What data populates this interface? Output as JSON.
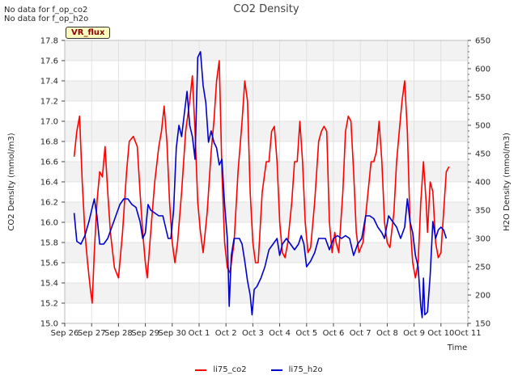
{
  "notes": [
    "No data for f_op_co2",
    "No data for f_op_h2o"
  ],
  "badge": "VR_flux",
  "colors": {
    "co2": "#ff0000",
    "h2o": "#0000cc",
    "band": "#f2f2f2",
    "grid": "#dcdcdc"
  },
  "chart_data": {
    "type": "line",
    "title": "CO2 Density",
    "xlabel": "Time",
    "ylabel": "CO2 Density (mmol/m3)",
    "y2label": "H2O Density (mmol/m3)",
    "xlim": [
      0,
      15
    ],
    "ylim": [
      15.0,
      17.8
    ],
    "y2lim": [
      150,
      650
    ],
    "x_ticks": [
      "Sep 26",
      "Sep 27",
      "Sep 28",
      "Sep 29",
      "Sep 30",
      "Oct 1",
      "Oct 2",
      "Oct 3",
      "Oct 4",
      "Oct 5",
      "Oct 6",
      "Oct 7",
      "Oct 8",
      "Oct 9",
      "Oct 10",
      "Oct 11"
    ],
    "y_ticks": [
      "15.0",
      "15.2",
      "15.4",
      "15.6",
      "15.8",
      "16.0",
      "16.2",
      "16.4",
      "16.6",
      "16.8",
      "17.0",
      "17.2",
      "17.4",
      "17.6",
      "17.8"
    ],
    "y2_ticks": [
      "150",
      "200",
      "250",
      "300",
      "350",
      "400",
      "450",
      "500",
      "550",
      "600",
      "650"
    ],
    "legend_position": "bottom-center",
    "series": [
      {
        "name": "li75_co2",
        "axis": "left",
        "points": [
          [
            0.35,
            16.65
          ],
          [
            0.45,
            16.9
          ],
          [
            0.55,
            17.05
          ],
          [
            0.65,
            16.4
          ],
          [
            0.75,
            15.9
          ],
          [
            0.85,
            15.6
          ],
          [
            0.95,
            15.35
          ],
          [
            1.02,
            15.2
          ],
          [
            1.1,
            15.7
          ],
          [
            1.2,
            16.2
          ],
          [
            1.3,
            16.5
          ],
          [
            1.4,
            16.45
          ],
          [
            1.5,
            16.75
          ],
          [
            1.6,
            16.3
          ],
          [
            1.7,
            15.9
          ],
          [
            1.85,
            15.55
          ],
          [
            2.0,
            15.45
          ],
          [
            2.15,
            15.9
          ],
          [
            2.3,
            16.5
          ],
          [
            2.4,
            16.8
          ],
          [
            2.55,
            16.85
          ],
          [
            2.7,
            16.75
          ],
          [
            2.8,
            16.3
          ],
          [
            2.9,
            15.9
          ],
          [
            3.0,
            15.6
          ],
          [
            3.07,
            15.45
          ],
          [
            3.2,
            15.9
          ],
          [
            3.35,
            16.4
          ],
          [
            3.5,
            16.75
          ],
          [
            3.6,
            16.9
          ],
          [
            3.7,
            17.15
          ],
          [
            3.8,
            16.8
          ],
          [
            3.9,
            16.2
          ],
          [
            4.0,
            15.8
          ],
          [
            4.1,
            15.6
          ],
          [
            4.2,
            15.8
          ],
          [
            4.35,
            16.3
          ],
          [
            4.5,
            16.9
          ],
          [
            4.65,
            17.2
          ],
          [
            4.75,
            17.45
          ],
          [
            4.85,
            16.9
          ],
          [
            4.95,
            16.2
          ],
          [
            5.05,
            15.9
          ],
          [
            5.15,
            15.7
          ],
          [
            5.3,
            16.1
          ],
          [
            5.45,
            16.7
          ],
          [
            5.55,
            17.0
          ],
          [
            5.65,
            17.4
          ],
          [
            5.75,
            17.6
          ],
          [
            5.85,
            16.5
          ],
          [
            5.95,
            15.8
          ],
          [
            6.05,
            15.55
          ],
          [
            6.15,
            15.5
          ],
          [
            6.3,
            15.8
          ],
          [
            6.45,
            16.5
          ],
          [
            6.6,
            17.0
          ],
          [
            6.7,
            17.4
          ],
          [
            6.8,
            17.2
          ],
          [
            6.9,
            16.3
          ],
          [
            7.0,
            15.8
          ],
          [
            7.1,
            15.6
          ],
          [
            7.2,
            15.6
          ],
          [
            7.35,
            16.3
          ],
          [
            7.5,
            16.6
          ],
          [
            7.6,
            16.6
          ],
          [
            7.7,
            16.9
          ],
          [
            7.8,
            16.95
          ],
          [
            7.9,
            16.6
          ],
          [
            8.0,
            16.0
          ],
          [
            8.1,
            15.7
          ],
          [
            8.2,
            15.65
          ],
          [
            8.3,
            15.8
          ],
          [
            8.45,
            16.2
          ],
          [
            8.55,
            16.6
          ],
          [
            8.65,
            16.6
          ],
          [
            8.75,
            17.0
          ],
          [
            8.85,
            16.6
          ],
          [
            8.95,
            16.0
          ],
          [
            9.05,
            15.7
          ],
          [
            9.15,
            15.75
          ],
          [
            9.3,
            16.2
          ],
          [
            9.45,
            16.8
          ],
          [
            9.55,
            16.9
          ],
          [
            9.65,
            16.95
          ],
          [
            9.75,
            16.9
          ],
          [
            9.85,
            16.0
          ],
          [
            9.95,
            15.7
          ],
          [
            10.05,
            15.9
          ],
          [
            10.1,
            15.8
          ],
          [
            10.2,
            15.7
          ],
          [
            10.35,
            16.3
          ],
          [
            10.45,
            16.9
          ],
          [
            10.55,
            17.05
          ],
          [
            10.65,
            17.0
          ],
          [
            10.75,
            16.5
          ],
          [
            10.85,
            15.9
          ],
          [
            10.95,
            15.7
          ],
          [
            11.1,
            15.8
          ],
          [
            11.25,
            16.2
          ],
          [
            11.4,
            16.6
          ],
          [
            11.5,
            16.6
          ],
          [
            11.6,
            16.7
          ],
          [
            11.7,
            17.0
          ],
          [
            11.8,
            16.6
          ],
          [
            11.9,
            16.0
          ],
          [
            12.0,
            15.8
          ],
          [
            12.1,
            15.75
          ],
          [
            12.25,
            16.1
          ],
          [
            12.35,
            16.6
          ],
          [
            12.45,
            16.9
          ],
          [
            12.55,
            17.2
          ],
          [
            12.65,
            17.4
          ],
          [
            12.75,
            16.9
          ],
          [
            12.85,
            16.0
          ],
          [
            12.95,
            15.6
          ],
          [
            13.05,
            15.45
          ],
          [
            13.15,
            15.6
          ],
          [
            13.25,
            16.2
          ],
          [
            13.35,
            16.6
          ],
          [
            13.45,
            16.2
          ],
          [
            13.5,
            15.9
          ],
          [
            13.6,
            16.4
          ],
          [
            13.7,
            16.3
          ],
          [
            13.8,
            15.8
          ],
          [
            13.9,
            15.65
          ],
          [
            14.0,
            15.7
          ],
          [
            14.1,
            16.1
          ],
          [
            14.2,
            16.5
          ],
          [
            14.3,
            16.55
          ]
        ]
      },
      {
        "name": "li75_h2o",
        "axis": "right",
        "points": [
          [
            0.35,
            345
          ],
          [
            0.45,
            295
          ],
          [
            0.6,
            290
          ],
          [
            0.75,
            305
          ],
          [
            0.9,
            330
          ],
          [
            1.0,
            350
          ],
          [
            1.1,
            370
          ],
          [
            1.2,
            340
          ],
          [
            1.3,
            290
          ],
          [
            1.45,
            290
          ],
          [
            1.6,
            300
          ],
          [
            1.75,
            320
          ],
          [
            1.9,
            340
          ],
          [
            2.05,
            360
          ],
          [
            2.2,
            370
          ],
          [
            2.35,
            370
          ],
          [
            2.5,
            360
          ],
          [
            2.65,
            355
          ],
          [
            2.8,
            330
          ],
          [
            2.9,
            300
          ],
          [
            3.0,
            310
          ],
          [
            3.1,
            360
          ],
          [
            3.2,
            350
          ],
          [
            3.35,
            345
          ],
          [
            3.5,
            340
          ],
          [
            3.65,
            340
          ],
          [
            3.75,
            320
          ],
          [
            3.85,
            300
          ],
          [
            3.95,
            300
          ],
          [
            4.05,
            350
          ],
          [
            4.15,
            460
          ],
          [
            4.25,
            500
          ],
          [
            4.35,
            480
          ],
          [
            4.45,
            520
          ],
          [
            4.55,
            560
          ],
          [
            4.65,
            500
          ],
          [
            4.75,
            480
          ],
          [
            4.85,
            440
          ],
          [
            4.95,
            620
          ],
          [
            5.05,
            630
          ],
          [
            5.15,
            570
          ],
          [
            5.25,
            540
          ],
          [
            5.35,
            470
          ],
          [
            5.45,
            490
          ],
          [
            5.55,
            470
          ],
          [
            5.65,
            460
          ],
          [
            5.75,
            430
          ],
          [
            5.85,
            440
          ],
          [
            5.95,
            360
          ],
          [
            6.05,
            300
          ],
          [
            6.12,
            180
          ],
          [
            6.2,
            270
          ],
          [
            6.3,
            300
          ],
          [
            6.4,
            300
          ],
          [
            6.5,
            300
          ],
          [
            6.6,
            290
          ],
          [
            6.7,
            260
          ],
          [
            6.8,
            225
          ],
          [
            6.9,
            200
          ],
          [
            6.97,
            165
          ],
          [
            7.05,
            210
          ],
          [
            7.15,
            215
          ],
          [
            7.3,
            230
          ],
          [
            7.45,
            250
          ],
          [
            7.6,
            280
          ],
          [
            7.75,
            290
          ],
          [
            7.9,
            300
          ],
          [
            8.0,
            270
          ],
          [
            8.1,
            290
          ],
          [
            8.25,
            300
          ],
          [
            8.4,
            290
          ],
          [
            8.55,
            280
          ],
          [
            8.7,
            290
          ],
          [
            8.8,
            305
          ],
          [
            8.9,
            290
          ],
          [
            9.0,
            250
          ],
          [
            9.15,
            260
          ],
          [
            9.3,
            275
          ],
          [
            9.45,
            300
          ],
          [
            9.55,
            300
          ],
          [
            9.7,
            300
          ],
          [
            9.85,
            280
          ],
          [
            10.0,
            300
          ],
          [
            10.15,
            305
          ],
          [
            10.3,
            300
          ],
          [
            10.45,
            305
          ],
          [
            10.6,
            300
          ],
          [
            10.75,
            270
          ],
          [
            10.9,
            290
          ],
          [
            11.05,
            300
          ],
          [
            11.2,
            340
          ],
          [
            11.35,
            340
          ],
          [
            11.5,
            335
          ],
          [
            11.65,
            320
          ],
          [
            11.8,
            310
          ],
          [
            11.9,
            300
          ],
          [
            12.05,
            340
          ],
          [
            12.2,
            330
          ],
          [
            12.35,
            320
          ],
          [
            12.5,
            300
          ],
          [
            12.65,
            320
          ],
          [
            12.75,
            370
          ],
          [
            12.85,
            330
          ],
          [
            12.95,
            310
          ],
          [
            13.05,
            270
          ],
          [
            13.15,
            250
          ],
          [
            13.25,
            180
          ],
          [
            13.3,
            160
          ],
          [
            13.35,
            230
          ],
          [
            13.4,
            165
          ],
          [
            13.5,
            170
          ],
          [
            13.6,
            235
          ],
          [
            13.7,
            330
          ],
          [
            13.8,
            300
          ],
          [
            13.9,
            315
          ],
          [
            14.0,
            320
          ],
          [
            14.1,
            315
          ],
          [
            14.2,
            300
          ]
        ]
      }
    ]
  },
  "legend": [
    {
      "label": "li75_co2",
      "color": "#ff0000"
    },
    {
      "label": "li75_h2o",
      "color": "#0000cc"
    }
  ]
}
